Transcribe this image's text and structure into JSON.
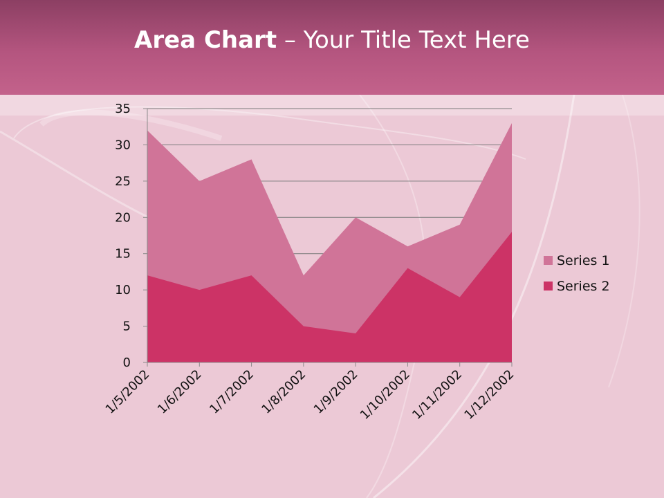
{
  "slide": {
    "title_bold": "Area Chart",
    "title_rest": " – Your Title Text Here"
  },
  "colors": {
    "series1": "#d07498",
    "series2": "#cc3366",
    "header": "#b4557f",
    "background": "#ecc9d6"
  },
  "chart_data": {
    "type": "area",
    "categories": [
      "1/5/2002",
      "1/6/2002",
      "1/7/2002",
      "1/8/2002",
      "1/9/2002",
      "1/10/2002",
      "1/11/2002",
      "1/12/2002"
    ],
    "series": [
      {
        "name": "Series 1",
        "values": [
          32,
          25,
          28,
          12,
          20,
          16,
          19,
          33
        ]
      },
      {
        "name": "Series 2",
        "values": [
          12,
          10,
          12,
          5,
          4,
          13,
          9,
          18
        ]
      }
    ],
    "yticks": [
      0,
      5,
      10,
      15,
      20,
      25,
      30,
      35
    ],
    "ylim": [
      0,
      35
    ],
    "grid": true,
    "legend": "right"
  }
}
